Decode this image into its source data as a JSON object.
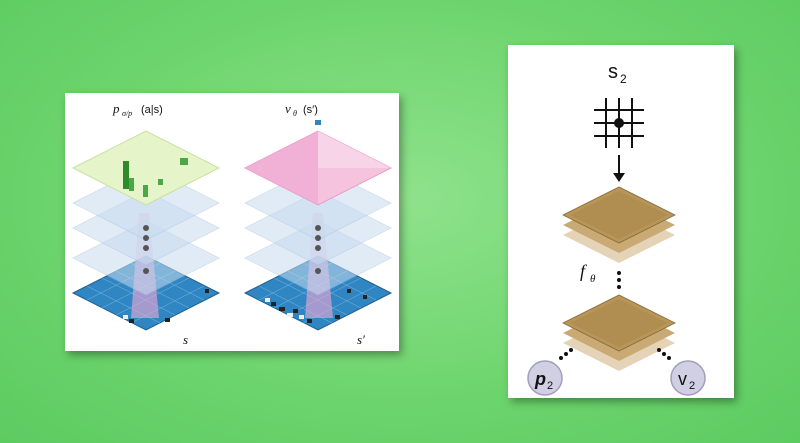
{
  "left": {
    "policy_label_p": "p",
    "policy_label_sub": "σ/p",
    "policy_label_arg": "(a|s)",
    "value_label_nu": "ν",
    "value_label_sub": "θ",
    "value_label_arg": "(s′)",
    "state_label": "s",
    "state_prime_label": "s′",
    "colors": {
      "policy_plane": "#e6f4c9",
      "value_plane": "#f0a8d0",
      "hidden_plane": "#c9dcf0",
      "board": "#2f86c2",
      "bars": "#2f8a2c"
    }
  },
  "right": {
    "state_label": "s",
    "state_sub": "2",
    "network_label": "f",
    "network_sub": "θ",
    "policy_out": "p",
    "policy_out_sub": "2",
    "value_out": "v",
    "value_out_sub": "2",
    "colors": {
      "board": "#b8965a",
      "node_fill": "#d0cfe3"
    }
  }
}
